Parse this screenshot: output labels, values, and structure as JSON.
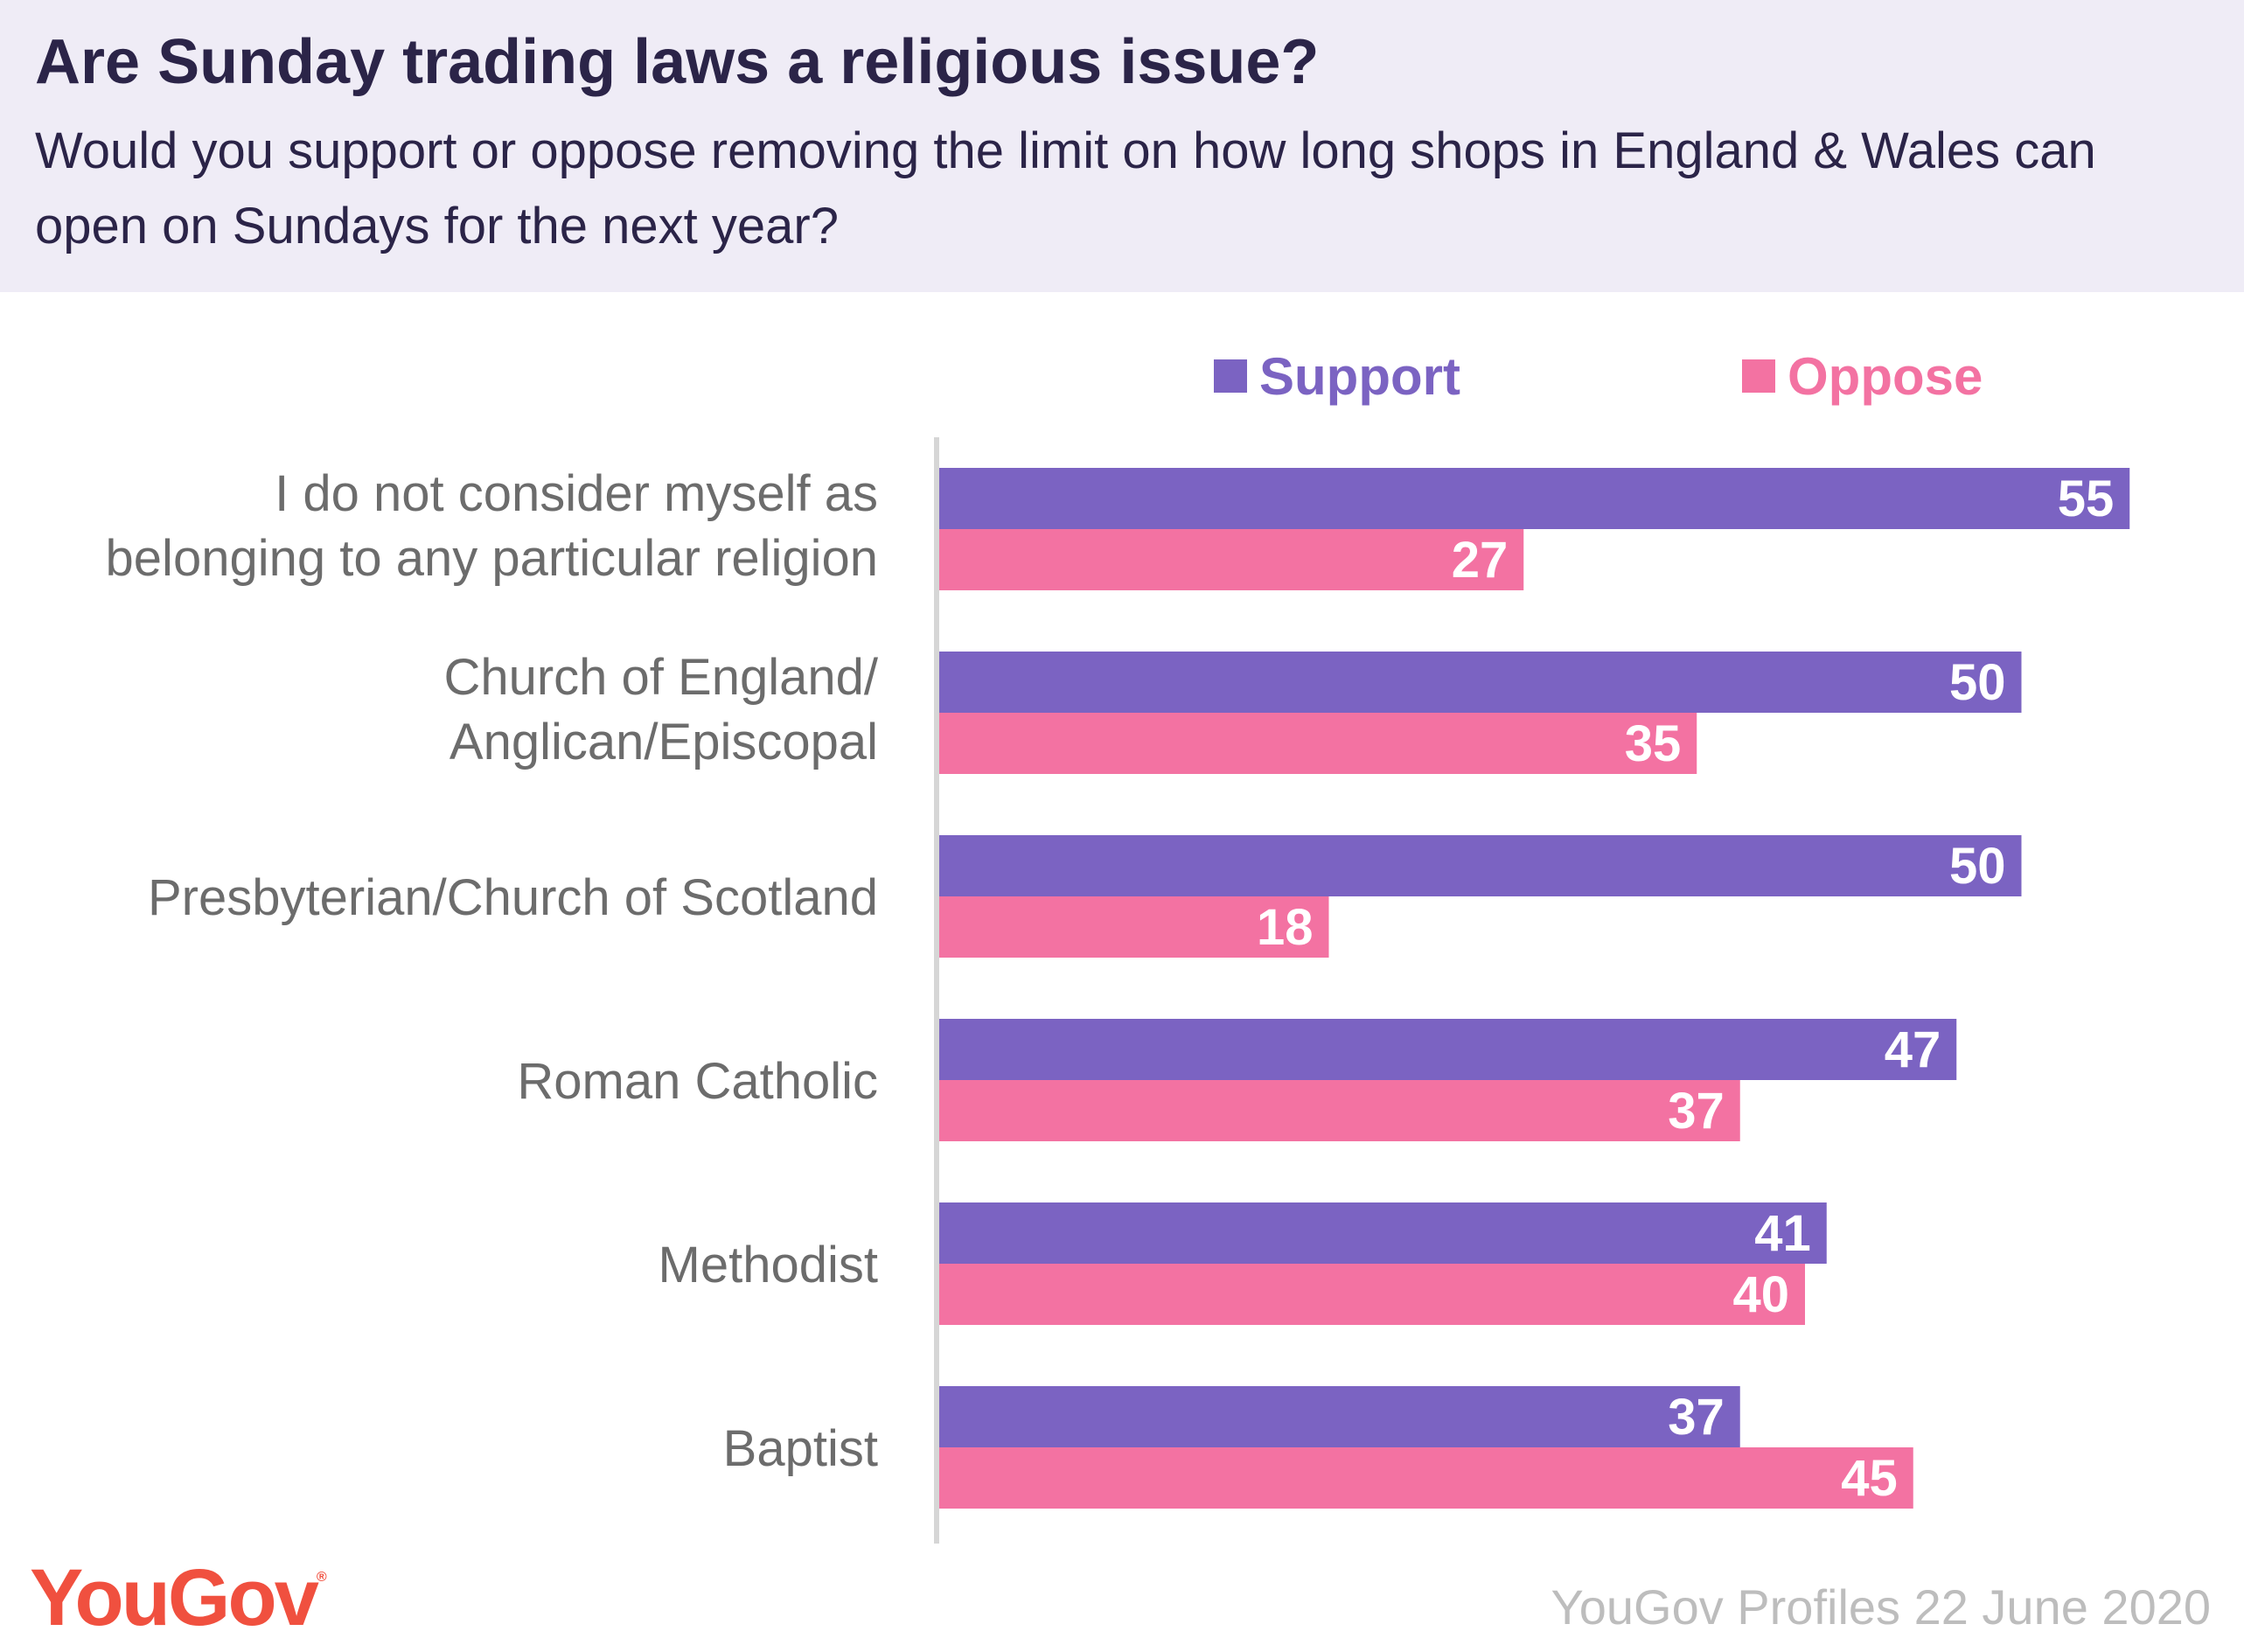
{
  "header": {
    "title": "Are Sunday trading laws a religious issue?",
    "subtitle": "Would you support or oppose removing the limit on how long shops in England & Wales can open on Sundays for the next year?"
  },
  "legend": {
    "support": "Support",
    "oppose": "Oppose"
  },
  "colors": {
    "support": "#7b63c2",
    "oppose": "#f372a2",
    "header_bg": "#efecf6",
    "logo": "#f0503f"
  },
  "categories": [
    {
      "label": "I do not consider myself as\nbelonging to any particular religion"
    },
    {
      "label": "Church of England/\nAnglican/Episcopal"
    },
    {
      "label": "Presbyterian/Church of Scotland"
    },
    {
      "label": "Roman Catholic"
    },
    {
      "label": "Methodist"
    },
    {
      "label": "Baptist"
    }
  ],
  "chart_data": {
    "type": "bar",
    "orientation": "horizontal",
    "categories": [
      "I do not consider myself as belonging to any particular religion",
      "Church of England/Anglican/Episcopal",
      "Presbyterian/Church of Scotland",
      "Roman Catholic",
      "Methodist",
      "Baptist"
    ],
    "series": [
      {
        "name": "Support",
        "values": [
          55,
          50,
          50,
          47,
          41,
          37
        ]
      },
      {
        "name": "Oppose",
        "values": [
          27,
          35,
          18,
          37,
          40,
          45
        ]
      }
    ],
    "data_labels": true,
    "grid": false,
    "legend_position": "top"
  },
  "footer": {
    "logo": "YouGov",
    "logo_mark": "®",
    "source": "YouGov Profiles 22 June 2020"
  }
}
